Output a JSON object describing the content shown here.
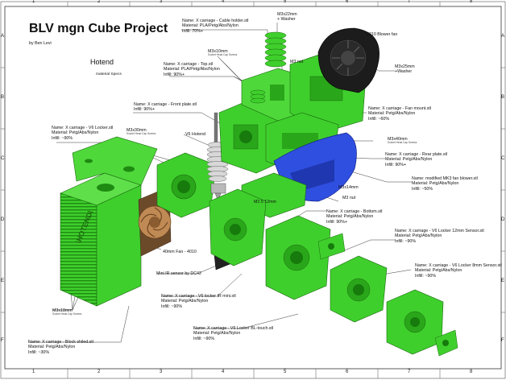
{
  "title": "BLV mgn Cube Project",
  "author": "by Ben Levi",
  "section_title": "Hotend",
  "section_subtitle": "material Specs",
  "ruler": {
    "columns": [
      "1",
      "2",
      "3",
      "4",
      "5",
      "6",
      "7",
      "8"
    ],
    "rows": [
      "A",
      "B",
      "C",
      "D",
      "E",
      "F"
    ]
  },
  "screw_note": "Socket Head Cap Screws",
  "colors": {
    "part_green": "#3fcf2c",
    "part_dark_green": "#1e8a12",
    "part_blue": "#2f4fe0",
    "fan_black": "#1c1c1c",
    "fan_brown": "#c08a55"
  },
  "labels": {
    "cable_holder": [
      "Name: X carriage - Cable holder.stl",
      "Material: PLA/Petg/Abs/Nylon",
      "Infill: 70%+"
    ],
    "m3x22": [
      "M3x22mm",
      "+ Washer"
    ],
    "blower_fan": [
      "5010 Blower fan"
    ],
    "m3x10": [
      "M3x10mm"
    ],
    "top": [
      "Name: X carriage - Top.stl",
      "Material: PLA/Petg/Abs/Nylon",
      "Infill: 90%+"
    ],
    "m3nut_top": [
      "M3 nut"
    ],
    "m3x25": [
      "M3x25mm",
      "+Washer"
    ],
    "front_plate": [
      "Name: X carriage - Front plate.stl",
      "Infill: 90%+"
    ],
    "fan_mount": [
      "Name: X carriage - Fan mount.stl",
      "Material: Petg/Abs/Nylon",
      "Infill: ~60%"
    ],
    "v6_hotend": [
      "V6 Hotend"
    ],
    "v6_locker": [
      "Name: X carriage - V6 Locker.stl",
      "Material: Petg/Abs/Nylon",
      "Infill: ~90%"
    ],
    "m3x30": [
      "M3x30mm"
    ],
    "m3x40": [
      "M3x40mm"
    ],
    "rear_plate": [
      "Name: X carriage - Rear plate.stl",
      "Material: Petg/Abs/Nylon",
      "Infill: 90%+"
    ],
    "mk3_blower": [
      "Name: modified MK3 fan blower.stl",
      "Material: Petg/Abs/Nylon",
      "Infill: ~50%"
    ],
    "m3x14": [
      "M3x14mm"
    ],
    "m25": [
      "M2.5 12mm"
    ],
    "m3nut_bottom": [
      "M3 nut"
    ],
    "bottom": [
      "Name: X carriage - Bottom.stl",
      "Material: Petg/Abs/Nylon",
      "Infill: 90%+"
    ],
    "fan_4010": [
      "40mm Fan - 4010"
    ],
    "sensor_12mm": [
      "Name: X carriage - V6 Locker 12mm Sensor.stl",
      "Material: Petg/Abs/Nylon",
      "Infill: ~90%"
    ],
    "ir_sensor": [
      "Mini IR sensor by DC42"
    ],
    "sensor_8mm": [
      "Name: X carriage - V6 Locker 8mm Sensor.stl",
      "Material: Petg/Abs/Nylon",
      "Infill: ~90%"
    ],
    "ir_mini": [
      "Name: X carriage - V6 locker IR mini.stl",
      "Material: Petg/Abs/Nylon",
      "Infill: ~90%"
    ],
    "m3x18": [
      "M3x18mm"
    ],
    "bltouch": [
      "Name: X carriage - V6 Locker BL-touch.stl",
      "Material: Petg/Abs/Nylon",
      "Infill: ~90%"
    ],
    "block_shield": [
      "Name: X carriage - Block shiled.stl",
      "Material: Petg/Abs/Nylon",
      "Infill: ~30%"
    ]
  },
  "block_text": "\\HOTEND\\"
}
